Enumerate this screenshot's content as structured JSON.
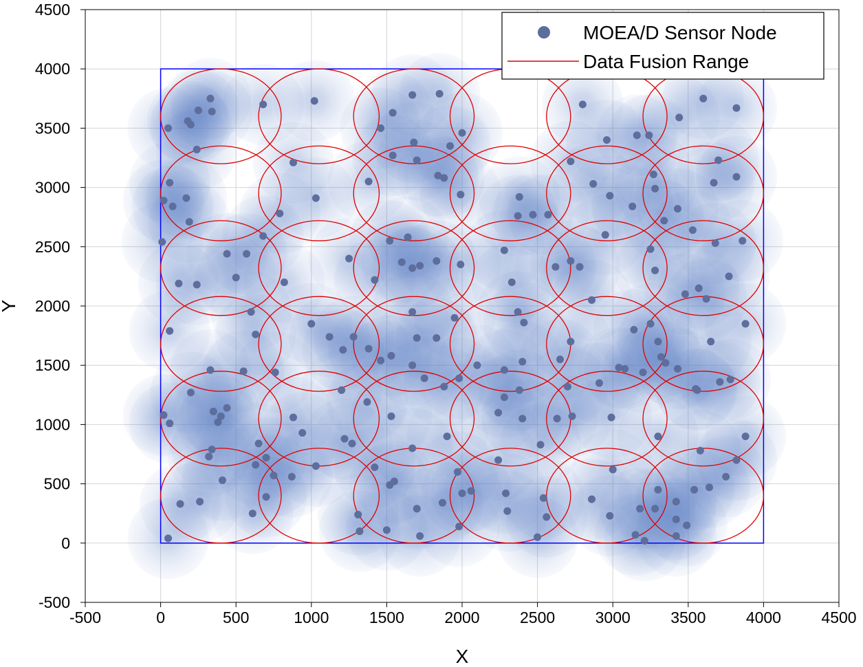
{
  "colors": {
    "node": "#5d6d9c",
    "halo": "#5b7ec4",
    "fusion": "#e00000",
    "region": "#0000ff",
    "grid": "#d4d4d4"
  },
  "chart_data": {
    "type": "scatter",
    "title": "",
    "xlabel": "X",
    "ylabel": "Y",
    "xlim": [
      -500,
      4500
    ],
    "ylim": [
      -500,
      4500
    ],
    "xticks": [
      -500,
      0,
      500,
      1000,
      1500,
      2000,
      2500,
      3000,
      3500,
      4000,
      4500
    ],
    "yticks": [
      -500,
      0,
      500,
      1000,
      1500,
      2000,
      2500,
      3000,
      3500,
      4000,
      4500
    ],
    "grid": true,
    "legend_position": "top-right",
    "legend": [
      "MOEA/D Sensor Node",
      "Data Fusion Range"
    ],
    "deployment_region": {
      "x": [
        0,
        4000
      ],
      "y": [
        0,
        4000
      ]
    },
    "fusion_range_radius": 400,
    "fusion_range_centers": [
      [
        400,
        3600
      ],
      [
        1050,
        3600
      ],
      [
        1680,
        3600
      ],
      [
        2320,
        3600
      ],
      [
        2960,
        3600
      ],
      [
        3600,
        3600
      ],
      [
        400,
        2950
      ],
      [
        1050,
        2950
      ],
      [
        1680,
        2950
      ],
      [
        2320,
        2950
      ],
      [
        2960,
        2950
      ],
      [
        3600,
        2950
      ],
      [
        400,
        2320
      ],
      [
        1050,
        2320
      ],
      [
        1680,
        2320
      ],
      [
        2320,
        2320
      ],
      [
        2960,
        2320
      ],
      [
        3600,
        2320
      ],
      [
        400,
        1680
      ],
      [
        1050,
        1680
      ],
      [
        1680,
        1680
      ],
      [
        2320,
        1680
      ],
      [
        2960,
        1680
      ],
      [
        3600,
        1680
      ],
      [
        400,
        1050
      ],
      [
        1050,
        1050
      ],
      [
        1680,
        1050
      ],
      [
        2320,
        1050
      ],
      [
        2960,
        1050
      ],
      [
        3600,
        1050
      ],
      [
        400,
        400
      ],
      [
        1050,
        400
      ],
      [
        1680,
        400
      ],
      [
        2320,
        400
      ],
      [
        2960,
        400
      ],
      [
        3600,
        400
      ]
    ],
    "sensor_nodes": [
      [
        50,
        3500
      ],
      [
        180,
        3560
      ],
      [
        200,
        3530
      ],
      [
        250,
        3650
      ],
      [
        330,
        3750
      ],
      [
        340,
        3640
      ],
      [
        680,
        3700
      ],
      [
        1020,
        3730
      ],
      [
        1460,
        3500
      ],
      [
        1540,
        3630
      ],
      [
        1670,
        3780
      ],
      [
        1850,
        3790
      ],
      [
        2800,
        3700
      ],
      [
        2960,
        3400
      ],
      [
        3160,
        3440
      ],
      [
        3240,
        3440
      ],
      [
        3440,
        3590
      ],
      [
        3600,
        3750
      ],
      [
        3820,
        3670
      ],
      [
        240,
        3320
      ],
      [
        880,
        3210
      ],
      [
        1380,
        3050
      ],
      [
        1540,
        3270
      ],
      [
        1680,
        3380
      ],
      [
        1700,
        3230
      ],
      [
        1920,
        3350
      ],
      [
        2000,
        3460
      ],
      [
        1990,
        2940
      ],
      [
        1840,
        3100
      ],
      [
        1880,
        3080
      ],
      [
        2380,
        2920
      ],
      [
        2720,
        3220
      ],
      [
        2870,
        3030
      ],
      [
        2980,
        2930
      ],
      [
        3130,
        2840
      ],
      [
        3270,
        3110
      ],
      [
        3280,
        2990
      ],
      [
        3430,
        2820
      ],
      [
        3700,
        3230
      ],
      [
        3670,
        3040
      ],
      [
        3820,
        3090
      ],
      [
        60,
        3040
      ],
      [
        20,
        2890
      ],
      [
        80,
        2840
      ],
      [
        170,
        2910
      ],
      [
        190,
        2710
      ],
      [
        1030,
        2910
      ],
      [
        790,
        2780
      ],
      [
        2370,
        2760
      ],
      [
        2470,
        2770
      ],
      [
        2570,
        2770
      ],
      [
        3340,
        2720
      ],
      [
        10,
        2540
      ],
      [
        440,
        2440
      ],
      [
        570,
        2440
      ],
      [
        680,
        2590
      ],
      [
        500,
        2240
      ],
      [
        120,
        2190
      ],
      [
        240,
        2180
      ],
      [
        820,
        2200
      ],
      [
        1250,
        2400
      ],
      [
        1420,
        2220
      ],
      [
        1520,
        2550
      ],
      [
        1600,
        2370
      ],
      [
        1640,
        2580
      ],
      [
        1670,
        2320
      ],
      [
        1720,
        2340
      ],
      [
        1830,
        2380
      ],
      [
        1990,
        2350
      ],
      [
        2280,
        2470
      ],
      [
        2330,
        2200
      ],
      [
        2620,
        2330
      ],
      [
        2720,
        2380
      ],
      [
        2780,
        2330
      ],
      [
        2950,
        2600
      ],
      [
        3250,
        2480
      ],
      [
        3280,
        2300
      ],
      [
        3480,
        2100
      ],
      [
        3530,
        2640
      ],
      [
        3570,
        2150
      ],
      [
        3620,
        2060
      ],
      [
        3680,
        2530
      ],
      [
        3770,
        2250
      ],
      [
        3860,
        2550
      ],
      [
        60,
        1790
      ],
      [
        600,
        1950
      ],
      [
        630,
        1760
      ],
      [
        760,
        1440
      ],
      [
        1000,
        1850
      ],
      [
        1120,
        1740
      ],
      [
        1210,
        1630
      ],
      [
        1280,
        1740
      ],
      [
        1380,
        1640
      ],
      [
        1460,
        1540
      ],
      [
        1530,
        1580
      ],
      [
        1670,
        1950
      ],
      [
        1700,
        1730
      ],
      [
        1830,
        1730
      ],
      [
        1950,
        1900
      ],
      [
        2370,
        1950
      ],
      [
        2410,
        1860
      ],
      [
        2720,
        1700
      ],
      [
        2860,
        2050
      ],
      [
        3140,
        1800
      ],
      [
        3250,
        1850
      ],
      [
        3300,
        1700
      ],
      [
        3320,
        1570
      ],
      [
        3350,
        1520
      ],
      [
        3430,
        1470
      ],
      [
        3200,
        1440
      ],
      [
        1670,
        1500
      ],
      [
        2280,
        1460
      ],
      [
        2400,
        1530
      ],
      [
        2380,
        1290
      ],
      [
        2700,
        1320
      ],
      [
        2910,
        1350
      ],
      [
        3040,
        1480
      ],
      [
        3080,
        1470
      ],
      [
        3550,
        1300
      ],
      [
        3780,
        1380
      ],
      [
        3710,
        1360
      ],
      [
        330,
        1460
      ],
      [
        550,
        1450
      ],
      [
        200,
        1270
      ],
      [
        350,
        1110
      ],
      [
        380,
        1020
      ],
      [
        400,
        1070
      ],
      [
        440,
        1140
      ],
      [
        20,
        1080
      ],
      [
        60,
        1010
      ],
      [
        880,
        1060
      ],
      [
        940,
        930
      ],
      [
        1200,
        1290
      ],
      [
        1370,
        1190
      ],
      [
        1530,
        1070
      ],
      [
        1750,
        1390
      ],
      [
        1880,
        1320
      ],
      [
        1980,
        1390
      ],
      [
        2280,
        1230
      ],
      [
        2400,
        1050
      ],
      [
        2630,
        1050
      ],
      [
        2730,
        1070
      ],
      [
        2990,
        1060
      ],
      [
        3300,
        900
      ],
      [
        340,
        790
      ],
      [
        320,
        730
      ],
      [
        650,
        840
      ],
      [
        700,
        720
      ],
      [
        630,
        660
      ],
      [
        870,
        560
      ],
      [
        1030,
        650
      ],
      [
        1220,
        880
      ],
      [
        1270,
        840
      ],
      [
        1420,
        640
      ],
      [
        1670,
        800
      ],
      [
        2000,
        420
      ],
      [
        2060,
        440
      ],
      [
        2240,
        700
      ],
      [
        2290,
        420
      ],
      [
        2300,
        270
      ],
      [
        2520,
        830
      ],
      [
        2540,
        380
      ],
      [
        2560,
        220
      ],
      [
        2860,
        370
      ],
      [
        2980,
        230
      ],
      [
        3180,
        290
      ],
      [
        3300,
        450
      ],
      [
        3280,
        290
      ],
      [
        3420,
        350
      ],
      [
        3420,
        200
      ],
      [
        3490,
        150
      ],
      [
        3540,
        450
      ],
      [
        3640,
        470
      ],
      [
        3750,
        560
      ],
      [
        3580,
        780
      ],
      [
        3560,
        1290
      ],
      [
        260,
        350
      ],
      [
        130,
        330
      ],
      [
        410,
        530
      ],
      [
        610,
        250
      ],
      [
        700,
        390
      ],
      [
        750,
        570
      ],
      [
        1520,
        490
      ],
      [
        1550,
        520
      ],
      [
        1700,
        290
      ],
      [
        1870,
        340
      ],
      [
        1310,
        240
      ],
      [
        1320,
        100
      ],
      [
        1500,
        110
      ],
      [
        1720,
        60
      ],
      [
        1980,
        140
      ],
      [
        2500,
        50
      ],
      [
        3150,
        70
      ],
      [
        3210,
        20
      ],
      [
        3420,
        60
      ],
      [
        50,
        40
      ],
      [
        1900,
        900
      ],
      [
        1970,
        600
      ],
      [
        2240,
        1100
      ],
      [
        2100,
        1500
      ],
      [
        2650,
        1550
      ],
      [
        3650,
        1700
      ],
      [
        3880,
        1850
      ],
      [
        3880,
        900
      ],
      [
        3820,
        700
      ],
      [
        3000,
        620
      ]
    ]
  }
}
